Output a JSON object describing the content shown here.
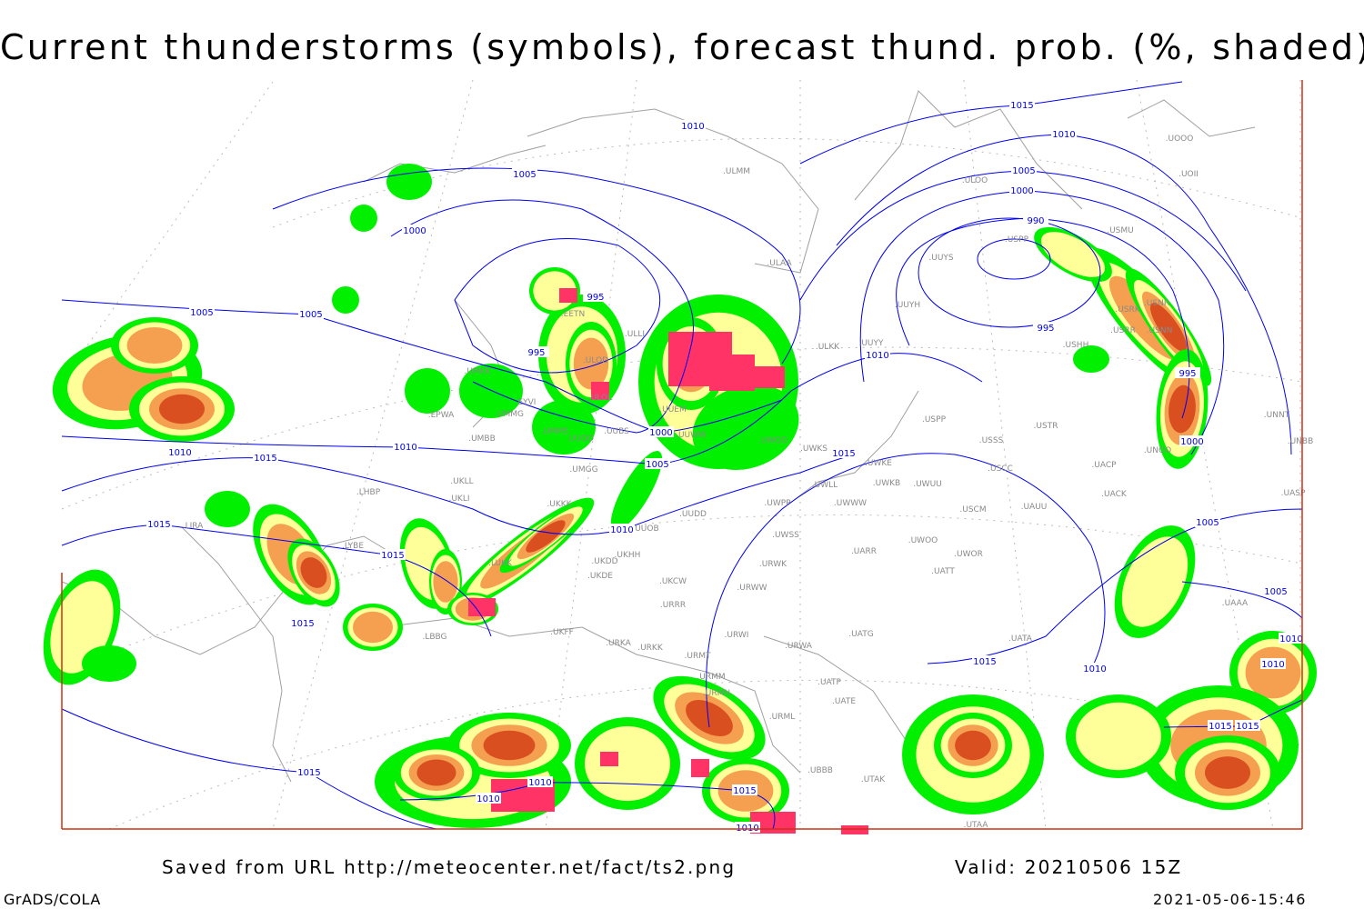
{
  "title": "Current thunderstorms (symbols), forecast thund. prob. (%, shaded)",
  "footer": {
    "saved": "Saved from URL http://meteocenter.net/fact/ts2.png",
    "valid": "Valid: 20210506 15Z",
    "software": "GrADS/COLA",
    "timestamp": "2021-05-06-15:46"
  },
  "colors": {
    "isobar": "#0000ee",
    "coastline": "#a0a0a0",
    "prob_low": "#00f000",
    "prob_mid": "#ffff99",
    "prob_high": "#f5a050",
    "prob_very_high": "#d94f20",
    "thunderstorm_symbol": "#ff3366",
    "frame": "#cc3311"
  },
  "isobar_labels": [
    "1015",
    "1010",
    "1005",
    "1000",
    "990",
    "995",
    "995",
    "1000",
    "1010",
    "1005",
    "1000",
    "995",
    "995",
    "1005",
    "1005",
    "1010",
    "1000",
    "1005",
    "1010",
    "1015",
    "1010",
    "1015",
    "1010",
    "1015",
    "1015",
    "1015",
    "1015",
    "1010",
    "1010",
    "1010",
    "1005",
    "1005",
    "1015",
    "1015",
    "1015",
    "1010",
    "1010",
    "1015",
    "1010"
  ],
  "stations": [
    "UOOO",
    "UOII",
    "ULOO",
    "USMU",
    "USPP",
    "UUYS",
    "UUYH",
    "USRK",
    "USNR",
    "USRR",
    "USNN",
    "USHH",
    "UUYY",
    "ULKK",
    "ULAA",
    "ULMM",
    "USPP",
    "USTR",
    "USSS",
    "UNOO",
    "UNNT",
    "UNBB",
    "USCC",
    "UACP",
    "UACK",
    "UASP",
    "UAAA",
    "UWKE",
    "UWKB",
    "UWUU",
    "USCM",
    "UAUU",
    "UWLL",
    "UWWW",
    "UWPP",
    "UWSS",
    "UARR",
    "UWOO",
    "UWOR",
    "UATT",
    "URWK",
    "URWW",
    "UATG",
    "URWI",
    "URWA",
    "UATP",
    "UATE",
    "URML",
    "UBBB",
    "UTAK",
    "UTAA",
    "UATA",
    "UUDD",
    "UUOB",
    "UKHH",
    "UKDD",
    "UKDE",
    "UKCW",
    "URRR",
    "UKFF",
    "URKA",
    "URKK",
    "URMT",
    "URMM",
    "URMN",
    "UMGG",
    "UUBS",
    "UUOO",
    "UMMS",
    "UMMG",
    "EPWA",
    "UMBB",
    "UKLL",
    "UKLI",
    "UKKK",
    "LUKK",
    "LBBG",
    "LYBE",
    "LHBP",
    "LIRA",
    "EETN",
    "ULLI",
    "ULOL",
    "UUEM",
    "UUWW",
    "UWGG",
    "UWKS",
    "ULOD",
    "UMKK",
    "EYVI"
  ]
}
